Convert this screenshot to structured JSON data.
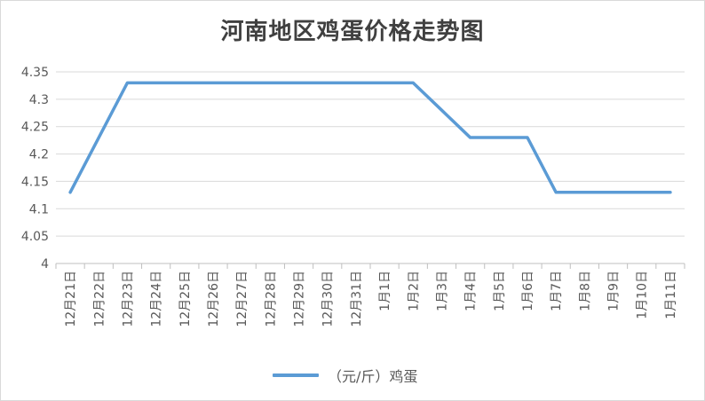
{
  "chart_data": {
    "type": "line",
    "title": "河南地区鸡蛋价格走势图",
    "xlabel": "",
    "ylabel": "",
    "categories": [
      "12月21日",
      "12月22日",
      "12月23日",
      "12月24日",
      "12月25日",
      "12月26日",
      "12月27日",
      "12月28日",
      "12月29日",
      "12月30日",
      "12月31日",
      "1月1日",
      "1月2日",
      "1月3日",
      "1月4日",
      "1月5日",
      "1月6日",
      "1月7日",
      "1月8日",
      "1月9日",
      "1月10日",
      "1月11日"
    ],
    "series": [
      {
        "name": "（元/斤）鸡蛋",
        "color": "#5b9bd5",
        "values": [
          4.13,
          4.23,
          4.33,
          4.33,
          4.33,
          4.33,
          4.33,
          4.33,
          4.33,
          4.33,
          4.33,
          4.33,
          4.33,
          4.28,
          4.23,
          4.23,
          4.23,
          4.13,
          4.13,
          4.13,
          4.13,
          4.13
        ]
      }
    ],
    "ylim": [
      4,
      4.35
    ],
    "yticks": [
      "4",
      "4.05",
      "4.1",
      "4.15",
      "4.2",
      "4.25",
      "4.3",
      "4.35"
    ],
    "grid": true,
    "legend": "bottom"
  }
}
